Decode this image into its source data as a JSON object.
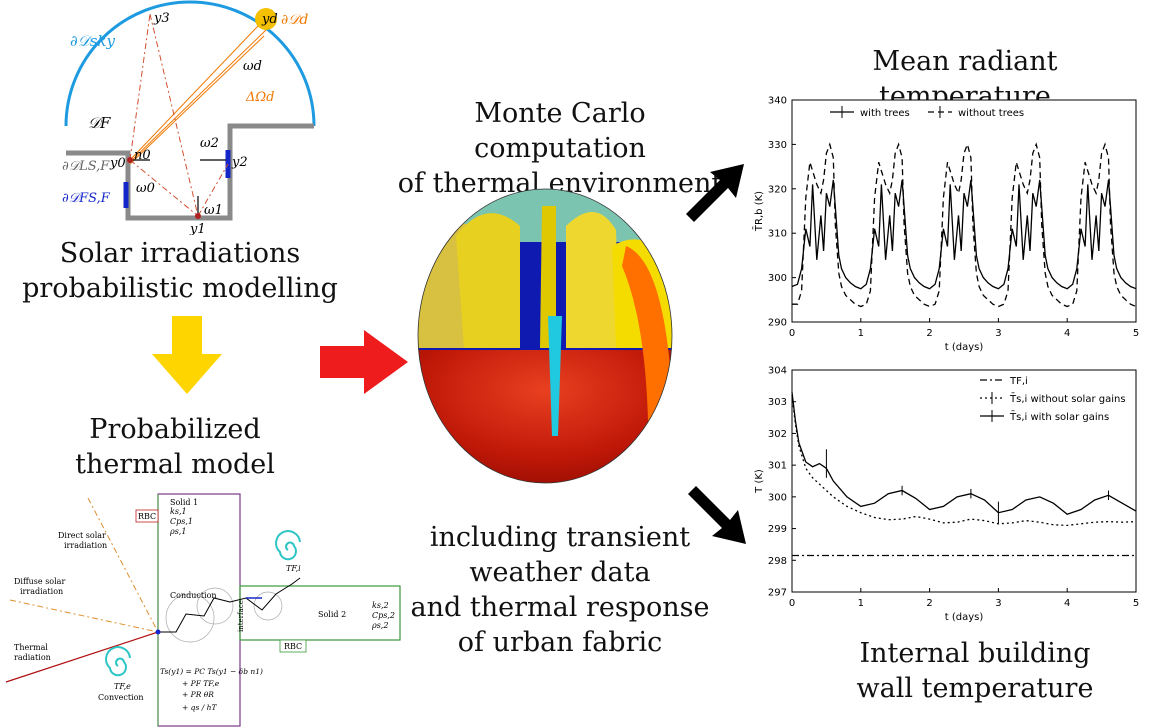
{
  "captions": {
    "solar_line1": "Solar irradiations",
    "solar_line2": "probabilistic modelling",
    "prob_line1": "Probabilized",
    "prob_line2": "thermal model",
    "mc_line1": "Monte Carlo computation",
    "mc_line2": "of thermal environment",
    "incl_line1": "including transient",
    "incl_line2": "weather data",
    "incl_line3": "and thermal response",
    "incl_line4": "of urban fabric",
    "mrt_title": "Mean radiant temperature",
    "wall_line1": "Internal building",
    "wall_line2": "wall temperature"
  },
  "geometry_labels": {
    "sky": "∂𝒟sky",
    "sun": "∂𝒟d",
    "domain": "𝒟F",
    "y3": "y3",
    "yd": "yd",
    "omega_d": "ωd",
    "delta_omega": "ΔΩd",
    "omega2": "ω2",
    "y2": "y2",
    "n0": "n0",
    "y0": "y0",
    "omega0": "ω0",
    "omega1": "ω1",
    "y1": "y1",
    "dsl": "∂𝒟LS,F",
    "dsf": "∂𝒟FS,F"
  },
  "model_labels": {
    "solid1": "Solid 1",
    "k1": "ks,1",
    "cp1": "Cps,1",
    "rho1": "ρs,1",
    "rbc1": "RBC",
    "rbc2": "RBC",
    "solid2": "Solid 2",
    "k2": "ks,2",
    "cp2": "Cps,2",
    "rho2": "ρs,2",
    "direct": "Direct solar",
    "direct2": "irradiation",
    "diffuse": "Diffuse solar",
    "diffuse2": "irradiation",
    "thermal": "Thermal",
    "thermal2": "radiation",
    "conduction": "Conduction",
    "convection": "Convection",
    "interface": "interface",
    "tfi": "TF,i",
    "tfe": "TF,e",
    "eq1": "Ts(y1) = PC Ts(y1 − δb n1)",
    "eq2": "+ PF TF,e",
    "eq3": "+ PR θR",
    "eq4": "+ qs / hT"
  },
  "colors": {
    "sky_arc": "#1e9be0",
    "sun": "#f5c000",
    "rays": "#f07800",
    "wall": "#8a8a8a",
    "surface_blue": "#1426c8",
    "yellow_arrow": "#ffd500",
    "red_arrow": "#ee1c1c",
    "spiral": "#2ec5c5",
    "solid1_border": "#7a3a8a",
    "solid2_border": "#3a9a3a"
  },
  "chart_data": [
    {
      "type": "line",
      "title": "Mean radiant temperature",
      "xlabel": "t (days)",
      "ylabel": "T̄R,b (K)",
      "xlim": [
        0,
        5
      ],
      "ylim": [
        290,
        340
      ],
      "xticks": [
        0,
        1,
        2,
        3,
        4,
        5
      ],
      "yticks": [
        290,
        300,
        310,
        320,
        330,
        340
      ],
      "legend_position": "top-center",
      "series": [
        {
          "name": "with trees",
          "style": "solid",
          "x": [
            0,
            0.08,
            0.14,
            0.2,
            0.26,
            0.3,
            0.36,
            0.42,
            0.46,
            0.5,
            0.55,
            0.6,
            0.63,
            0.68,
            0.72,
            0.78,
            0.85,
            0.92,
            1.0,
            1.08,
            1.14,
            1.2,
            1.26,
            1.3,
            1.36,
            1.42,
            1.46,
            1.5,
            1.55,
            1.6,
            1.63,
            1.68,
            1.72,
            1.78,
            1.85,
            1.92,
            2.0,
            2.08,
            2.14,
            2.2,
            2.26,
            2.3,
            2.36,
            2.42,
            2.46,
            2.5,
            2.55,
            2.6,
            2.63,
            2.68,
            2.72,
            2.78,
            2.85,
            2.92,
            3.0,
            3.08,
            3.14,
            3.2,
            3.26,
            3.3,
            3.36,
            3.42,
            3.46,
            3.5,
            3.55,
            3.6,
            3.63,
            3.68,
            3.72,
            3.78,
            3.85,
            3.92,
            4.0,
            4.08,
            4.14,
            4.2,
            4.26,
            4.3,
            4.36,
            4.42,
            4.46,
            4.5,
            4.55,
            4.6,
            4.63,
            4.68,
            4.72,
            4.78,
            4.85,
            4.92,
            5.0
          ],
          "y": [
            298,
            298.5,
            302,
            311,
            307,
            321,
            304,
            314,
            306,
            319,
            316,
            322,
            316,
            305,
            302,
            300,
            298.8,
            298,
            297.5,
            298.5,
            302,
            311,
            307,
            321,
            304,
            314,
            306,
            319,
            316,
            322,
            316,
            305,
            302,
            300,
            298.8,
            298,
            297.5,
            298.5,
            302,
            311,
            307,
            321,
            304,
            314,
            306,
            319,
            316,
            322,
            316,
            305,
            302,
            300,
            298.8,
            298,
            297.5,
            298.5,
            302,
            311,
            307,
            321,
            304,
            314,
            306,
            319,
            316,
            322,
            316,
            305,
            302,
            300,
            298.8,
            298,
            297.5,
            298.5,
            302,
            311,
            307,
            321,
            304,
            314,
            306,
            319,
            316,
            322,
            316,
            305,
            302,
            300,
            298.8,
            298,
            297.5
          ]
        },
        {
          "name": "without trees",
          "style": "dashed",
          "x": [
            0,
            0.08,
            0.14,
            0.2,
            0.26,
            0.3,
            0.36,
            0.42,
            0.46,
            0.5,
            0.55,
            0.6,
            0.63,
            0.68,
            0.72,
            0.78,
            0.85,
            0.92,
            1.0,
            1.08,
            1.14,
            1.2,
            1.26,
            1.3,
            1.36,
            1.42,
            1.46,
            1.5,
            1.55,
            1.6,
            1.63,
            1.68,
            1.72,
            1.78,
            1.85,
            1.92,
            2.0,
            2.08,
            2.14,
            2.2,
            2.26,
            2.3,
            2.36,
            2.42,
            2.46,
            2.5,
            2.55,
            2.6,
            2.63,
            2.68,
            2.72,
            2.78,
            2.85,
            2.92,
            3.0,
            3.08,
            3.14,
            3.2,
            3.26,
            3.3,
            3.36,
            3.42,
            3.46,
            3.5,
            3.55,
            3.6,
            3.63,
            3.68,
            3.72,
            3.78,
            3.85,
            3.92,
            4.0,
            4.08,
            4.14,
            4.2,
            4.26,
            4.3,
            4.36,
            4.42,
            4.46,
            4.5,
            4.55,
            4.6,
            4.63,
            4.68,
            4.72,
            4.78,
            4.85,
            4.92,
            5.0
          ],
          "y": [
            294,
            294,
            297,
            318,
            326,
            324,
            321,
            319,
            322,
            328,
            330,
            327,
            312,
            301,
            298,
            296,
            295,
            294,
            293.5,
            294,
            297,
            318,
            326,
            324,
            321,
            319,
            322,
            328,
            330,
            327,
            312,
            301,
            298,
            296,
            295,
            294,
            293.5,
            294,
            297,
            318,
            326,
            324,
            321,
            319,
            322,
            328,
            330,
            327,
            312,
            301,
            298,
            296,
            295,
            294,
            293.5,
            294,
            297,
            318,
            326,
            324,
            321,
            319,
            322,
            328,
            330,
            327,
            312,
            301,
            298,
            296,
            295,
            294,
            293.5,
            294,
            297,
            318,
            326,
            324,
            321,
            319,
            322,
            328,
            330,
            327,
            312,
            301,
            298,
            296,
            295,
            294,
            293.5
          ]
        }
      ]
    },
    {
      "type": "line",
      "title": "",
      "xlabel": "t (days)",
      "ylabel": "T (K)",
      "xlim": [
        0,
        5
      ],
      "ylim": [
        297,
        304
      ],
      "xticks": [
        0,
        1,
        2,
        3,
        4,
        5
      ],
      "yticks": [
        297,
        298,
        299,
        300,
        301,
        302,
        303,
        304
      ],
      "legend_position": "top-right",
      "series": [
        {
          "name": "TF,i",
          "style": "dashdot",
          "x": [
            0,
            5
          ],
          "y": [
            298.15,
            298.15
          ]
        },
        {
          "name": "T̄s,i without solar gains",
          "style": "dotted",
          "x": [
            0,
            0.05,
            0.1,
            0.2,
            0.3,
            0.4,
            0.5,
            0.6,
            0.8,
            1.0,
            1.2,
            1.4,
            1.6,
            1.8,
            2.0,
            2.2,
            2.4,
            2.6,
            2.8,
            3.0,
            3.2,
            3.4,
            3.6,
            3.8,
            4.0,
            4.2,
            4.4,
            4.6,
            4.8,
            5.0
          ],
          "y": [
            303.2,
            302.3,
            301.6,
            300.9,
            300.6,
            300.4,
            300.2,
            300.0,
            299.7,
            299.5,
            299.35,
            299.28,
            299.3,
            299.38,
            299.3,
            299.18,
            299.2,
            299.3,
            299.25,
            299.15,
            299.18,
            299.25,
            299.2,
            299.12,
            299.1,
            299.15,
            299.2,
            299.22,
            299.2,
            299.22
          ]
        },
        {
          "name": "T̄s,i with solar gains",
          "style": "solid",
          "x": [
            0,
            0.05,
            0.1,
            0.2,
            0.3,
            0.4,
            0.5,
            0.6,
            0.8,
            1.0,
            1.2,
            1.4,
            1.6,
            1.8,
            2.0,
            2.2,
            2.4,
            2.6,
            2.8,
            3.0,
            3.2,
            3.4,
            3.6,
            3.8,
            4.0,
            4.2,
            4.4,
            4.6,
            4.8,
            5.0
          ],
          "y": [
            303.3,
            302.4,
            301.7,
            301.1,
            300.95,
            301.05,
            300.9,
            300.5,
            300.0,
            299.7,
            299.8,
            300.1,
            300.2,
            299.95,
            299.6,
            299.7,
            300.0,
            300.1,
            299.9,
            299.5,
            299.6,
            299.9,
            300.0,
            299.8,
            299.45,
            299.6,
            299.9,
            300.05,
            299.8,
            299.55
          ]
        }
      ]
    }
  ]
}
